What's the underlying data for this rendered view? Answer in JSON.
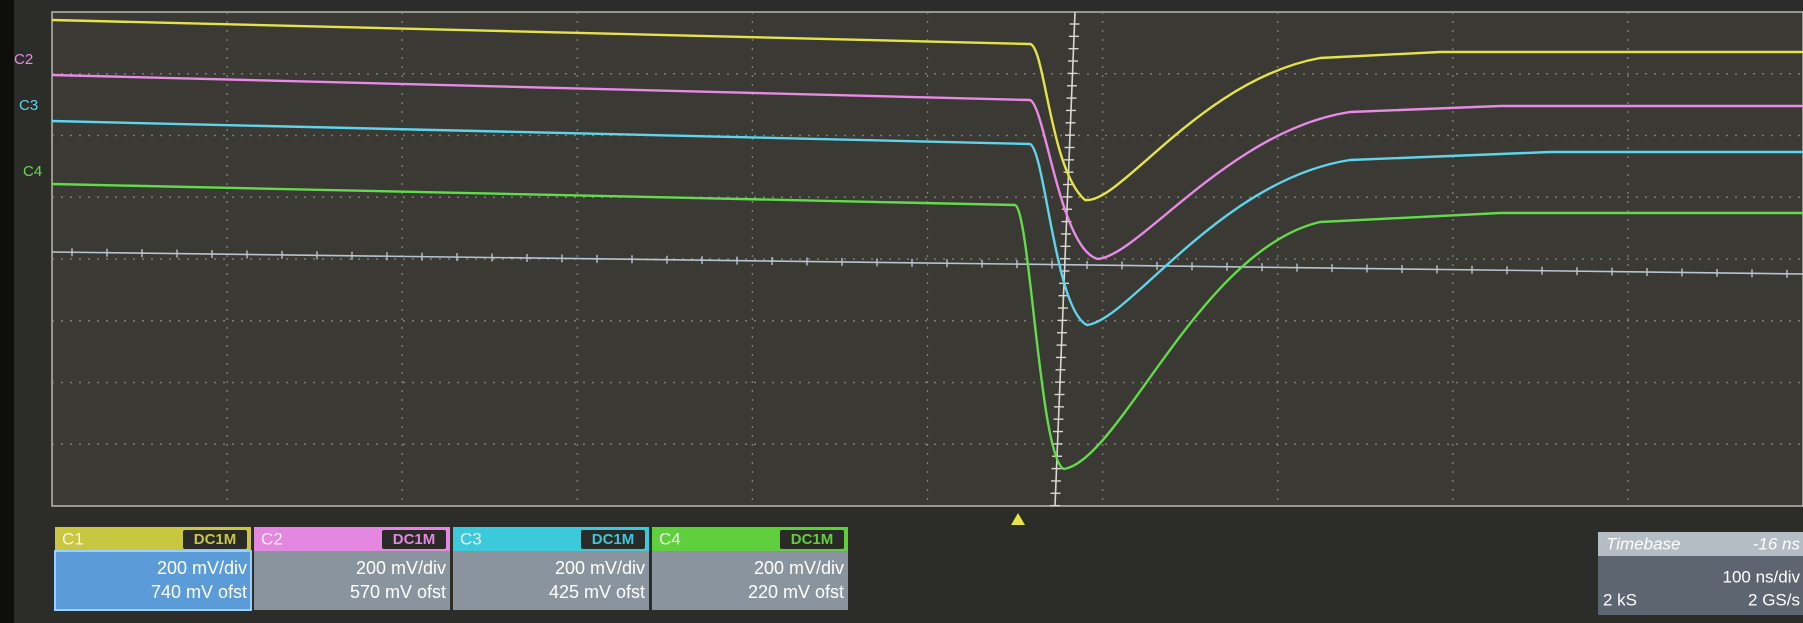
{
  "trace_labels": [
    "C2",
    "C3",
    "C4"
  ],
  "channels": [
    {
      "name": "C1",
      "coupling": "DC1M",
      "scale": "200 mV/div",
      "offset": "740 mV ofst"
    },
    {
      "name": "C2",
      "coupling": "DC1M",
      "scale": "200 mV/div",
      "offset": "570 mV ofst"
    },
    {
      "name": "C3",
      "coupling": "DC1M",
      "scale": "200 mV/div",
      "offset": "425 mV ofst"
    },
    {
      "name": "C4",
      "coupling": "DC1M",
      "scale": "200 mV/div",
      "offset": "220 mV ofst"
    }
  ],
  "timebase": {
    "label": "Timebase",
    "delay": "-16 ns",
    "scale": "100 ns/div",
    "samples": "2 kS",
    "rate": "2 GS/s"
  }
}
